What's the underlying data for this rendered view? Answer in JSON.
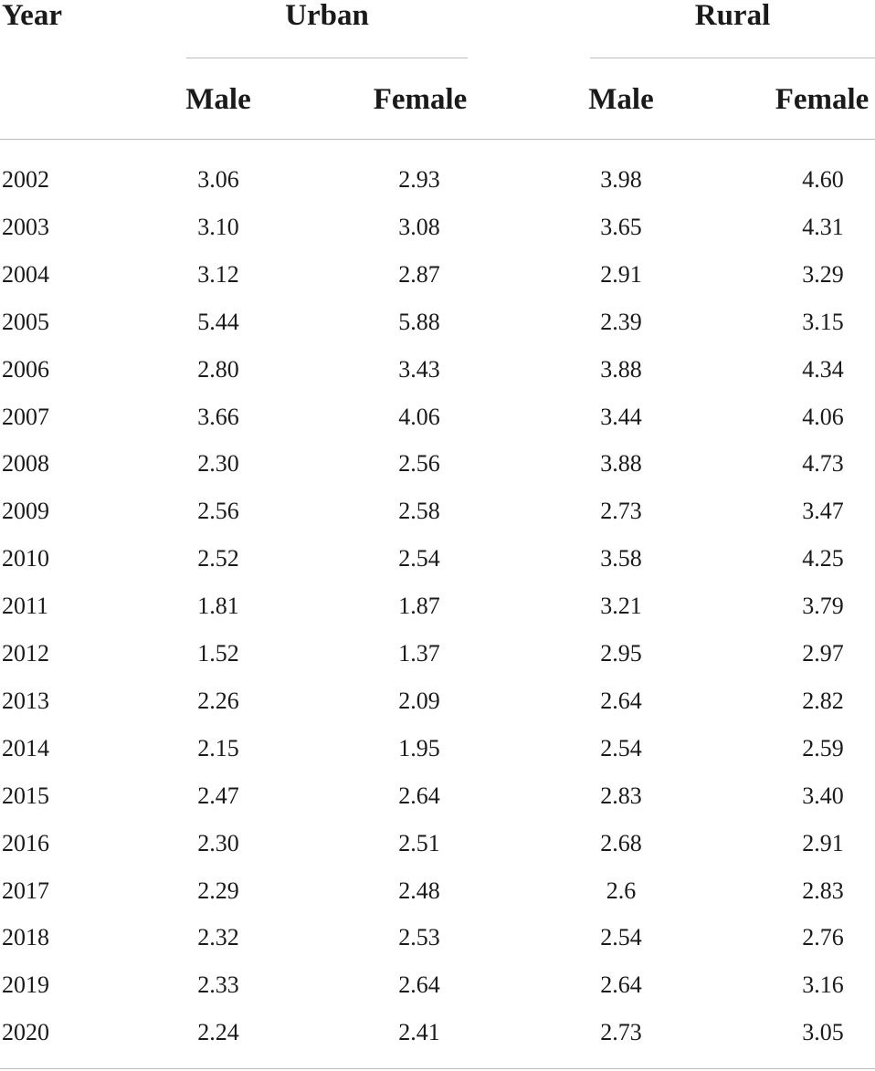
{
  "table": {
    "headers": {
      "year": "Year",
      "urban": "Urban",
      "rural": "Rural",
      "urban_male": "Male",
      "urban_female": "Female",
      "rural_male": "Male",
      "rural_female": "Female"
    },
    "rows": [
      {
        "year": "2002",
        "urban_male": "3.06",
        "urban_female": "2.93",
        "rural_male": "3.98",
        "rural_female": "4.60"
      },
      {
        "year": "2003",
        "urban_male": "3.10",
        "urban_female": "3.08",
        "rural_male": "3.65",
        "rural_female": "4.31"
      },
      {
        "year": "2004",
        "urban_male": "3.12",
        "urban_female": "2.87",
        "rural_male": "2.91",
        "rural_female": "3.29"
      },
      {
        "year": "2005",
        "urban_male": "5.44",
        "urban_female": "5.88",
        "rural_male": "2.39",
        "rural_female": "3.15"
      },
      {
        "year": "2006",
        "urban_male": "2.80",
        "urban_female": "3.43",
        "rural_male": "3.88",
        "rural_female": "4.34"
      },
      {
        "year": "2007",
        "urban_male": "3.66",
        "urban_female": "4.06",
        "rural_male": "3.44",
        "rural_female": "4.06"
      },
      {
        "year": "2008",
        "urban_male": "2.30",
        "urban_female": "2.56",
        "rural_male": "3.88",
        "rural_female": "4.73"
      },
      {
        "year": "2009",
        "urban_male": "2.56",
        "urban_female": "2.58",
        "rural_male": "2.73",
        "rural_female": "3.47"
      },
      {
        "year": "2010",
        "urban_male": "2.52",
        "urban_female": "2.54",
        "rural_male": "3.58",
        "rural_female": "4.25"
      },
      {
        "year": "2011",
        "urban_male": "1.81",
        "urban_female": "1.87",
        "rural_male": "3.21",
        "rural_female": "3.79"
      },
      {
        "year": "2012",
        "urban_male": "1.52",
        "urban_female": "1.37",
        "rural_male": "2.95",
        "rural_female": "2.97"
      },
      {
        "year": "2013",
        "urban_male": "2.26",
        "urban_female": "2.09",
        "rural_male": "2.64",
        "rural_female": "2.82"
      },
      {
        "year": "2014",
        "urban_male": "2.15",
        "urban_female": "1.95",
        "rural_male": "2.54",
        "rural_female": "2.59"
      },
      {
        "year": "2015",
        "urban_male": "2.47",
        "urban_female": "2.64",
        "rural_male": "2.83",
        "rural_female": "3.40"
      },
      {
        "year": "2016",
        "urban_male": "2.30",
        "urban_female": "2.51",
        "rural_male": "2.68",
        "rural_female": "2.91"
      },
      {
        "year": "2017",
        "urban_male": "2.29",
        "urban_female": "2.48",
        "rural_male": "2.6",
        "rural_female": "2.83"
      },
      {
        "year": "2018",
        "urban_male": "2.32",
        "urban_female": "2.53",
        "rural_male": "2.54",
        "rural_female": "2.76"
      },
      {
        "year": "2019",
        "urban_male": "2.33",
        "urban_female": "2.64",
        "rural_male": "2.64",
        "rural_female": "3.16"
      },
      {
        "year": "2020",
        "urban_male": "2.24",
        "urban_female": "2.41",
        "rural_male": "2.73",
        "rural_female": "3.05"
      }
    ]
  }
}
